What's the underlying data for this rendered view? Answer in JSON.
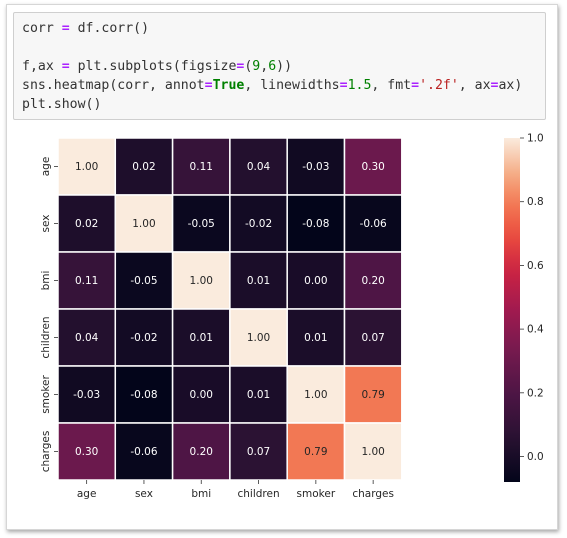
{
  "code_cell": {
    "lines": [
      [
        {
          "t": "corr ",
          "c": ""
        },
        {
          "t": "=",
          "c": "op"
        },
        {
          "t": " df.corr()",
          "c": ""
        }
      ],
      [],
      [
        {
          "t": "f,ax ",
          "c": ""
        },
        {
          "t": "=",
          "c": "op"
        },
        {
          "t": " plt.subplots(figsize",
          "c": ""
        },
        {
          "t": "=",
          "c": "op"
        },
        {
          "t": "(",
          "c": ""
        },
        {
          "t": "9",
          "c": "num"
        },
        {
          "t": ",",
          "c": ""
        },
        {
          "t": "6",
          "c": "num"
        },
        {
          "t": "))",
          "c": ""
        }
      ],
      [
        {
          "t": "sns.heatmap(corr, annot",
          "c": ""
        },
        {
          "t": "=",
          "c": "op"
        },
        {
          "t": "True",
          "c": "kw"
        },
        {
          "t": ", linewidths",
          "c": ""
        },
        {
          "t": "=",
          "c": "op"
        },
        {
          "t": "1.5",
          "c": "num"
        },
        {
          "t": ", fmt",
          "c": ""
        },
        {
          "t": "=",
          "c": "op"
        },
        {
          "t": "'.2f'",
          "c": "str"
        },
        {
          "t": ", ax",
          "c": ""
        },
        {
          "t": "=",
          "c": "op"
        },
        {
          "t": "ax)",
          "c": ""
        }
      ],
      [
        {
          "t": "plt.show()",
          "c": ""
        }
      ]
    ]
  },
  "chart_data": {
    "type": "heatmap",
    "x_labels": [
      "age",
      "sex",
      "bmi",
      "children",
      "smoker",
      "charges"
    ],
    "y_labels": [
      "age",
      "sex",
      "bmi",
      "children",
      "smoker",
      "charges"
    ],
    "values": [
      [
        1.0,
        0.02,
        0.11,
        0.04,
        -0.03,
        0.3
      ],
      [
        0.02,
        1.0,
        -0.05,
        -0.02,
        -0.08,
        -0.06
      ],
      [
        0.11,
        -0.05,
        1.0,
        0.01,
        0.0,
        0.2
      ],
      [
        0.04,
        -0.02,
        0.01,
        1.0,
        0.01,
        0.07
      ],
      [
        -0.03,
        -0.08,
        0.0,
        0.01,
        1.0,
        0.79
      ],
      [
        0.3,
        -0.06,
        0.2,
        0.07,
        0.79,
        1.0
      ]
    ],
    "annotation_format": ".2f",
    "colormap": "rocket",
    "colorbar": {
      "min": -0.08,
      "max": 1.0,
      "ticks": [
        0.0,
        0.2,
        0.4,
        0.6,
        0.8,
        1.0
      ],
      "tick_labels": [
        "0.0",
        "0.2",
        "0.4",
        "0.6",
        "0.8",
        "1.0"
      ]
    }
  }
}
